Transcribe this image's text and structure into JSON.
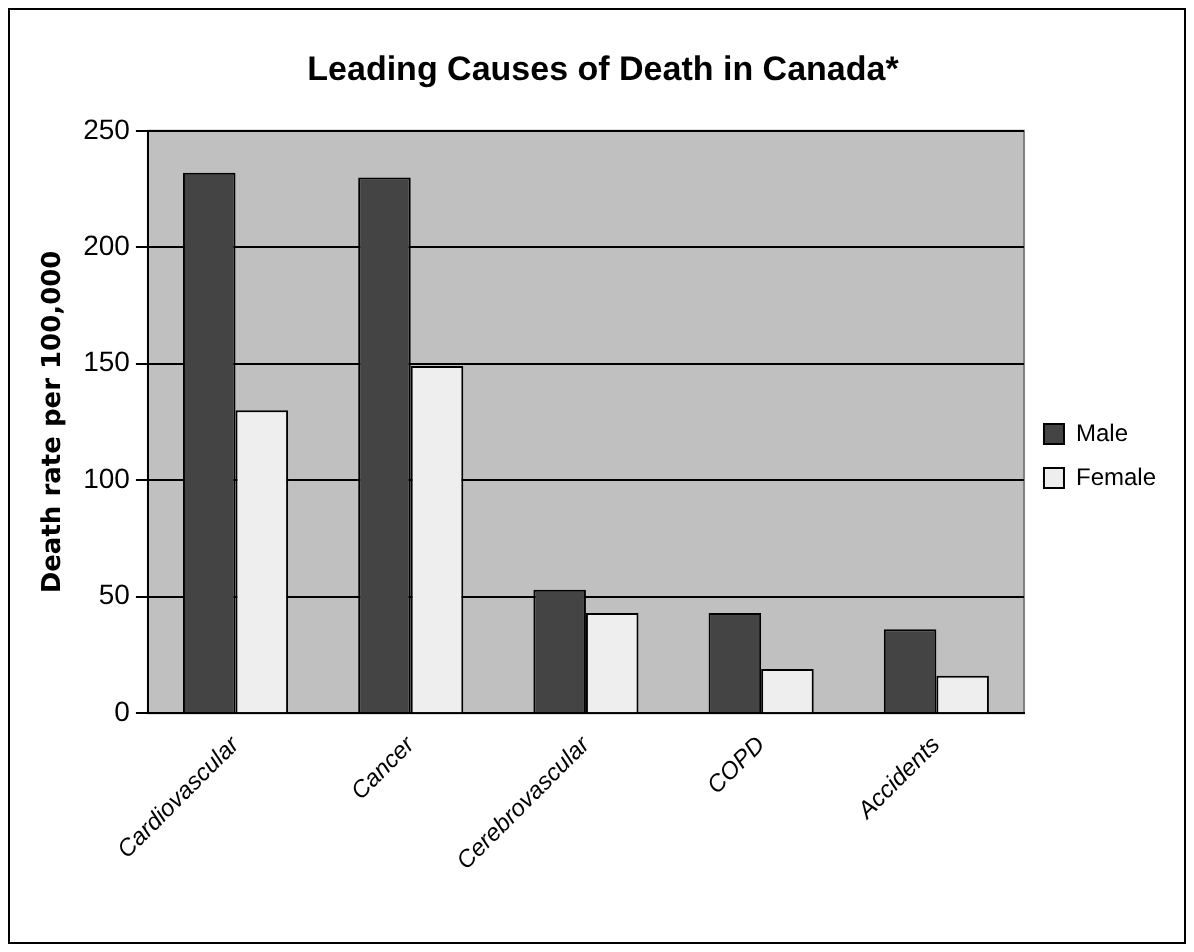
{
  "chart_data": {
    "type": "bar",
    "title": "Leading Causes of Death in Canada*",
    "ylabel": "Death rate per 100,000",
    "categories": [
      "Cardiovascular",
      "Cancer",
      "Cerebrovascular",
      "COPD",
      "Accidents"
    ],
    "series": [
      {
        "name": "Male",
        "color": "#444444",
        "values": [
          232,
          230,
          53,
          43,
          36
        ]
      },
      {
        "name": "Female",
        "color": "#eeeeee",
        "values": [
          130,
          149,
          43,
          19,
          16
        ]
      }
    ],
    "ylim": [
      0,
      250
    ],
    "yticks": [
      0,
      50,
      100,
      150,
      200,
      250
    ],
    "grid": "y",
    "legend": "right"
  }
}
